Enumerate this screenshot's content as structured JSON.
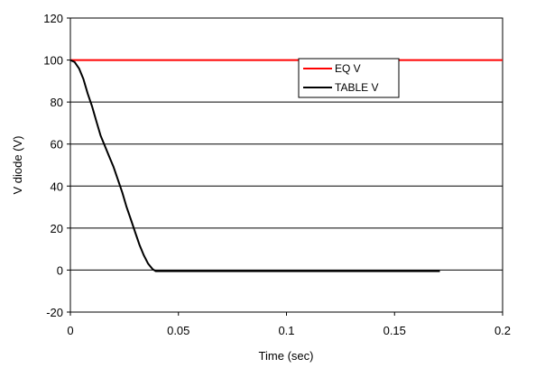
{
  "chart_data": {
    "type": "line",
    "title": "",
    "xlabel": "Time (sec)",
    "ylabel": "V diode (V)",
    "xlim": [
      0,
      0.2
    ],
    "ylim": [
      -20,
      120
    ],
    "x_ticks": [
      0,
      0.05,
      0.1,
      0.15,
      0.2
    ],
    "x_tick_labels": [
      "0",
      "0.05",
      "0.1",
      "0.15",
      "0.2"
    ],
    "y_ticks": [
      -20,
      0,
      20,
      40,
      60,
      80,
      100,
      120
    ],
    "y_tick_labels": [
      "-20",
      "0",
      "20",
      "40",
      "60",
      "80",
      "100",
      "120"
    ],
    "grid": "horizontal",
    "legend_position": "upper-right",
    "series": [
      {
        "name": "EQ V",
        "color": "#ff0000",
        "x": [
          0,
          0.2
        ],
        "y": [
          100,
          100
        ]
      },
      {
        "name": "TABLE V",
        "color": "#000000",
        "x": [
          0,
          0.002,
          0.004,
          0.006,
          0.008,
          0.01,
          0.012,
          0.014,
          0.016,
          0.018,
          0.02,
          0.022,
          0.024,
          0.026,
          0.028,
          0.03,
          0.032,
          0.034,
          0.036,
          0.038,
          0.0395,
          0.041,
          0.06,
          0.1,
          0.14,
          0.171
        ],
        "y": [
          100,
          99,
          96,
          91,
          84,
          78,
          71,
          64,
          59,
          54,
          49,
          43,
          37,
          30,
          24,
          18,
          12,
          7,
          3,
          0.5,
          -0.5,
          -0.5,
          -0.5,
          -0.5,
          -0.5,
          -0.5
        ]
      }
    ]
  }
}
